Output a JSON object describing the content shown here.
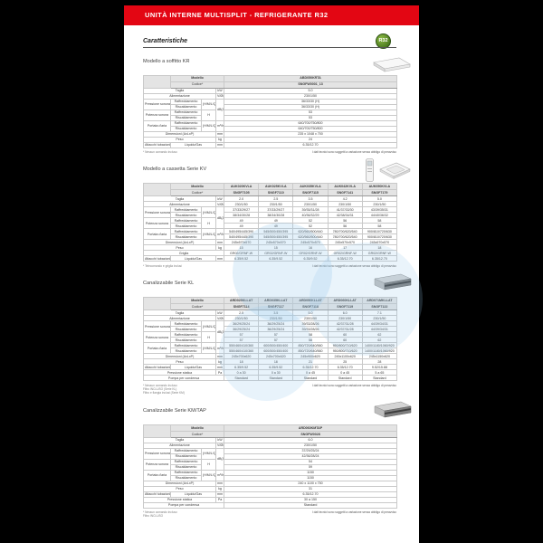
{
  "banner": {
    "title": "UNITÀ INTERNE MULTISPLIT - REFRIGERANTE R32"
  },
  "badge": {
    "label": "R32"
  },
  "heading": "Caratteristiche",
  "note_right": "I dati tecnici sono soggetti a variazione senza obbligo di preavviso",
  "tables": [
    {
      "title": "Modello a soffitto KR",
      "image": "ceiling",
      "model_label": "Modello",
      "code_label": "Codice*",
      "models": [
        "ABD050KRTA"
      ],
      "codes": [
        "SNGFW0001_13"
      ],
      "rows": [
        {
          "type": "simple",
          "label": "Taglia",
          "unit": "kW",
          "values": [
            "5.0"
          ]
        },
        {
          "type": "simple",
          "label": "Alimentazione",
          "unit": "V/Ø/Hz",
          "values": [
            "230/1/50"
          ]
        },
        {
          "type": "group",
          "label": "Pressione sonora",
          "mode": "(H/M/L/Q)",
          "unit": "dB(A)",
          "unit_span": 4,
          "subs": [
            "Raffreddamento",
            "Riscaldamento"
          ],
          "values": [
            [
              "36/33/30 (H)"
            ],
            [
              "36/33/30 (H)"
            ]
          ]
        },
        {
          "type": "group",
          "label": "Potenza sonora",
          "mode": "H",
          "unit": null,
          "subs": [
            "Raffreddamento",
            "Riscaldamento"
          ],
          "values": [
            [
              "53"
            ],
            [
              "53"
            ]
          ]
        },
        {
          "type": "group",
          "label": "Portata d'aria",
          "mode": "(H/M/L/Q)",
          "unit": "m³/h",
          "unit_span": 2,
          "subs": [
            "Raffreddamento",
            "Riscaldamento"
          ],
          "values": [
            [
              "640/700/750/800"
            ],
            [
              "640/700/750/800"
            ]
          ]
        },
        {
          "type": "simple",
          "label": "Dimensioni (AxLxP)",
          "unit": "mm",
          "values": [
            "235 x 1048 x 700"
          ]
        },
        {
          "type": "simple",
          "label": "Peso",
          "unit": "kg",
          "values": [
            "24"
          ]
        },
        {
          "type": "attacchi",
          "label": "Attacchi tubazioni",
          "sub": "Liquido/Gas",
          "unit": "mm",
          "values": [
            "6.35/12.70"
          ]
        }
      ],
      "footnotes": [
        "* Nessun comando incluso"
      ]
    },
    {
      "title": "Modello a cassetta Serie KV",
      "image": "cassette",
      "model_label": "Modello",
      "code_label": "Codice*",
      "models": [
        "AUK020KVLA",
        "AUK025KVLA",
        "AUK035KVLA",
        "AUK042KVLA",
        "AUK050KVLA"
      ],
      "codes": [
        "SNGF7105",
        "SNGF7110",
        "SNGF7115",
        "SNGF7141",
        "SNGF7179"
      ],
      "rows": [
        {
          "type": "simple",
          "label": "Taglia",
          "unit": "kW",
          "values": [
            "2.0",
            "2.5",
            "3.5",
            "4.2",
            "5.0"
          ]
        },
        {
          "type": "simple",
          "label": "Alimentazione",
          "unit": "V/Ø/Hz",
          "values": [
            "230/1/50",
            "230/1/50",
            "230/1/50",
            "230/1/50",
            "230/1/50"
          ]
        },
        {
          "type": "group",
          "label": "Pressione sonora",
          "mode": "(H/M/L/Q)",
          "unit": "dB(A)",
          "unit_span": 4,
          "subs": [
            "Raffreddamento",
            "Riscaldamento"
          ],
          "values": [
            [
              "37/33/29/27",
              "37/33/29/27",
              "39/35/31/28",
              "41/37/33/30",
              "43/39/35/31"
            ],
            [
              "38/34/30/28",
              "38/34/30/28",
              "40/36/32/29",
              "42/38/34/31",
              "44/40/36/32"
            ]
          ]
        },
        {
          "type": "group",
          "label": "Potenza sonora",
          "mode": "H",
          "unit": null,
          "subs": [
            "Raffreddamento",
            "Riscaldamento"
          ],
          "values": [
            [
              "49",
              "49",
              "52",
              "56",
              "58"
            ],
            [
              "49",
              "49",
              "52",
              "56",
              "58"
            ]
          ]
        },
        {
          "type": "group",
          "label": "Portata d'aria",
          "mode": "(H/M/L/Q)",
          "unit": "m³/h",
          "unit_span": 2,
          "subs": [
            "Raffreddamento",
            "Riscaldamento"
          ],
          "values": [
            [
              "540/495/445/390",
              "545/500/450/395",
              "620/560/500/440",
              "780/700/620/540",
              "900/810/720/630"
            ],
            [
              "540/495/445/390",
              "545/500/450/395",
              "620/560/500/440",
              "780/700/620/540",
              "900/810/720/630"
            ]
          ]
        },
        {
          "type": "simple",
          "label": "Dimensioni (AxLxP)",
          "unit": "mm",
          "values": [
            "245x570x570",
            "245x570x570",
            "245x570x570",
            "245x570x570",
            "245x570x570"
          ]
        },
        {
          "type": "simple",
          "label": "Peso",
          "unit": "kg",
          "values": [
            "15",
            "15",
            "16",
            "17",
            "18"
          ]
        },
        {
          "type": "wide",
          "label": "Griglia",
          "values": [
            "GR02/GRNF-W",
            "GR02/GRNF-W",
            "GR02/GRNF-W",
            "GR02/GRNF-W",
            "GR02/GRNF-W"
          ]
        },
        {
          "type": "attacchi",
          "label": "Attacchi tubazioni",
          "sub": "Liquido/Gas",
          "unit": "mm",
          "values": [
            "6.35/9.52",
            "6.35/9.52",
            "6.35/9.52",
            "6.35/12.70",
            "6.35/12.70"
          ]
        }
      ],
      "footnotes": [
        "* Telecomando e griglia inclusi"
      ]
    },
    {
      "title": "Canalizzabile Serie KL",
      "image": "ducted",
      "model_label": "Modello",
      "code_label": "Codice*",
      "models": [
        "ARD025KLLAT",
        "ARD035KLLAT",
        "ARD050KLLAT",
        "ARD060KLLAT",
        "ARD071MKLLAT"
      ],
      "codes": [
        "SNGF7114",
        "SNGF7117",
        "SNGF7118",
        "SNGF7119",
        "SNGF7122"
      ],
      "rows": [
        {
          "type": "simple",
          "label": "Taglia",
          "unit": "kW",
          "values": [
            "2.5",
            "3.5",
            "5.0",
            "6.0",
            "7.1"
          ]
        },
        {
          "type": "simple",
          "label": "Alimentazione",
          "unit": "V/Ø/Hz",
          "values": [
            "230/1/50",
            "230/1/50",
            "230/1/50",
            "230/1/50",
            "230/1/50"
          ]
        },
        {
          "type": "group",
          "label": "Pressione sonora",
          "mode": "(H/M/L/Q)",
          "unit": "dB(A)",
          "unit_span": 4,
          "subs": [
            "Raffreddamento",
            "Riscaldamento"
          ],
          "values": [
            [
              "36/29/25/24",
              "36/29/25/24",
              "39/33/28/26",
              "42/37/31/28",
              "44/39/34/31"
            ],
            [
              "36/29/25/24",
              "36/29/25/24",
              "39/33/28/26",
              "42/37/31/28",
              "44/39/34/31"
            ]
          ]
        },
        {
          "type": "group",
          "label": "Potenza sonora",
          "mode": "H",
          "unit": null,
          "subs": [
            "Raffreddamento",
            "Riscaldamento"
          ],
          "values": [
            [
              "57",
              "57",
              "58",
              "60",
              "62"
            ],
            [
              "57",
              "57",
              "58",
              "60",
              "62"
            ]
          ]
        },
        {
          "type": "group",
          "label": "Portata d'aria",
          "mode": "(H/M/L/Q)",
          "unit": "m³/h",
          "unit_span": 2,
          "subs": [
            "Raffreddamento",
            "Riscaldamento"
          ],
          "values": [
            [
              "550/460/410/360",
              "600/500/450/400",
              "850/720/640/560",
              "950/800/710/620",
              "1400/1180/1060/920"
            ],
            [
              "550/460/410/360",
              "600/500/450/400",
              "850/720/640/560",
              "950/800/710/620",
              "1400/1180/1060/920"
            ]
          ]
        },
        {
          "type": "simple",
          "label": "Dimensioni (AxLxP)",
          "unit": "mm",
          "values": [
            "245x700x620",
            "245x700x620",
            "245x900x620",
            "245x1100x620",
            "245x1150x620"
          ]
        },
        {
          "type": "simple",
          "label": "Peso",
          "unit": "kg",
          "values": [
            "18",
            "18",
            "21",
            "25",
            "28"
          ]
        },
        {
          "type": "attacchi",
          "label": "Attacchi tubazioni",
          "sub": "Liquido/Gas",
          "unit": "mm",
          "values": [
            "6.35/9.52",
            "6.35/9.52",
            "6.35/12.70",
            "6.35/12.70",
            "9.52/15.88"
          ]
        },
        {
          "type": "simple",
          "label": "Pressione statica",
          "unit": "Pa",
          "values": [
            "0 a 30",
            "0 a 30",
            "0 a 45",
            "0 a 45",
            "5 a 65"
          ]
        },
        {
          "type": "wide",
          "label": "Pompa per condensa",
          "values": [
            "Standard",
            "Standard",
            "Standard",
            "Standard",
            "Standard"
          ]
        }
      ],
      "footnotes": [
        "* Nessun comando incluso",
        "Filtro INCLUSO (Serie KL)",
        "Filtro e flangia inclusi (Serie KM)"
      ]
    },
    {
      "title": "Canalizzabile Serie KM/TAP",
      "image": "ducted",
      "model_label": "Modello",
      "code_label": "Codice*",
      "models": [
        "ARD060KMTAP"
      ],
      "codes": [
        "SNGFW0028"
      ],
      "rows": [
        {
          "type": "simple",
          "label": "Taglia",
          "unit": "kW",
          "values": [
            "6.0"
          ]
        },
        {
          "type": "simple",
          "label": "Alimentazione",
          "unit": "V/Ø/Hz",
          "values": [
            "230/1/50"
          ]
        },
        {
          "type": "group",
          "label": "Pressione sonora",
          "mode": "(H/M/L/Q)",
          "unit": "dB(A)",
          "unit_span": 4,
          "subs": [
            "Raffreddamento",
            "Riscaldamento"
          ],
          "values": [
            [
              "37/29/25/24"
            ],
            [
              "42/36/28/24"
            ]
          ]
        },
        {
          "type": "group",
          "label": "Potenza sonora",
          "mode": "H",
          "unit": null,
          "subs": [
            "Raffreddamento",
            "Riscaldamento"
          ],
          "values": [
            [
              "54"
            ],
            [
              "59"
            ]
          ]
        },
        {
          "type": "group",
          "label": "Portata d'aria",
          "mode": "(H/M/L/Q)",
          "unit": "m³/h",
          "unit_span": 2,
          "subs": [
            "Raffreddamento",
            "Riscaldamento"
          ],
          "values": [
            [
              "1150"
            ],
            [
              "1150"
            ]
          ]
        },
        {
          "type": "simple",
          "label": "Dimensioni (AxLxP)",
          "unit": "mm",
          "values": [
            "240 x 1100 x 750"
          ]
        },
        {
          "type": "simple",
          "label": "Peso",
          "unit": "kg",
          "values": [
            "31"
          ]
        },
        {
          "type": "attacchi",
          "label": "Attacchi tubazioni",
          "sub": "Liquido/Gas",
          "unit": "mm",
          "values": [
            "6.35/12.70"
          ]
        },
        {
          "type": "simple",
          "label": "Pressione statica",
          "unit": "Pa",
          "values": [
            "30 a 150"
          ]
        },
        {
          "type": "wide",
          "label": "Pompa per condensa",
          "values": [
            "Standard"
          ]
        }
      ],
      "footnotes": [
        "* Nessun comando incluso",
        "Filtro INCLUSO"
      ]
    }
  ]
}
